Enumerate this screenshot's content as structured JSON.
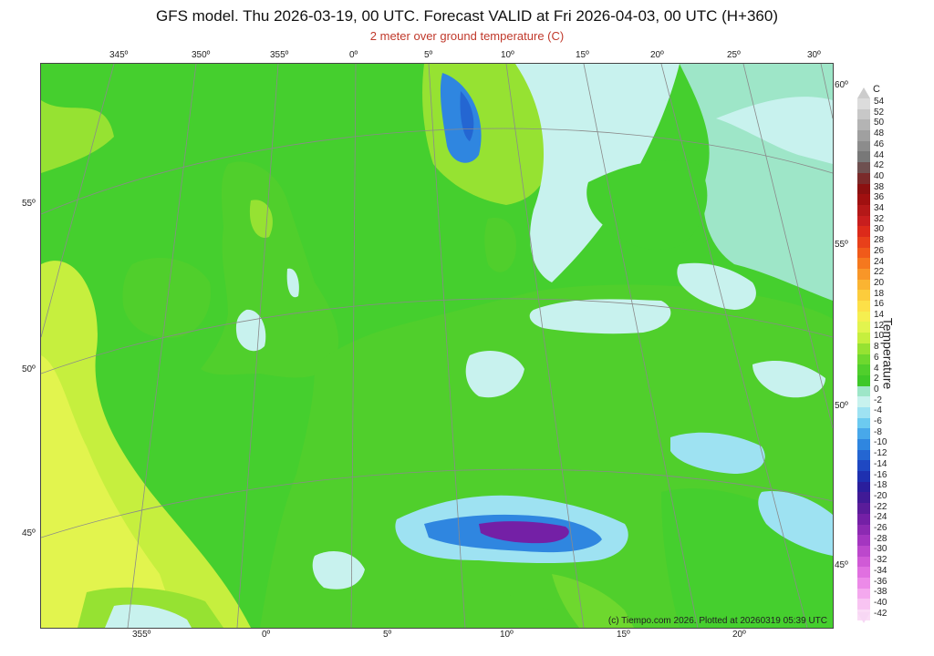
{
  "header": {
    "title": "GFS model. Thu 2026-03-19, 00 UTC. Forecast VALID at Fri 2026-04-03, 00 UTC (H+360)",
    "subtitle": "2 meter over ground temperature (C)"
  },
  "map": {
    "top_lon_ticks": [
      "345º",
      "350º",
      "355º",
      "0º",
      "5º",
      "10º",
      "15º",
      "20º",
      "25º",
      "30º"
    ],
    "bottom_lon_ticks": [
      "355º",
      "0º",
      "5º",
      "10º",
      "15º",
      "20º"
    ],
    "left_lat_ticks": [
      "55º",
      "50º",
      "45º"
    ],
    "right_lat_ticks": [
      "60º",
      "55º",
      "50º",
      "45º"
    ],
    "credit": "(c) Tiempo.com 2026. Plotted at 20260319 05:39 UTC"
  },
  "legend": {
    "unit": "C",
    "title": "Temperature",
    "labels": [
      "54",
      "52",
      "50",
      "48",
      "46",
      "44",
      "42",
      "40",
      "38",
      "36",
      "34",
      "32",
      "30",
      "28",
      "26",
      "24",
      "22",
      "20",
      "18",
      "16",
      "14",
      "12",
      "10",
      "8",
      "6",
      "4",
      "2",
      "0",
      "-2",
      "-4",
      "-6",
      "-8",
      "-10",
      "-12",
      "-14",
      "-16",
      "-18",
      "-20",
      "-22",
      "-24",
      "-26",
      "-28",
      "-30",
      "-32",
      "-34",
      "-36",
      "-38",
      "-40",
      "-42"
    ],
    "colors": [
      "#dcdcdc",
      "#c8c8c8",
      "#b4b4b4",
      "#a0a0a0",
      "#8c8c8c",
      "#787878",
      "#6e5050",
      "#7a2a2a",
      "#8b1010",
      "#a01010",
      "#b41818",
      "#c81e1e",
      "#dc2a1a",
      "#e8401a",
      "#f05a1a",
      "#f5781e",
      "#f89628",
      "#fab432",
      "#fccc3c",
      "#fde048",
      "#f5ef50",
      "#e2f44e",
      "#c6ef3e",
      "#96e232",
      "#6ed82e",
      "#50cf2c",
      "#3ec828",
      "#9ee6c8",
      "#c8f2ee",
      "#9ee2f2",
      "#6ccaf0",
      "#48a8ea",
      "#2f86e0",
      "#2466d2",
      "#1f48c2",
      "#1e30b0",
      "#2a1e9c",
      "#401a96",
      "#5a1c9a",
      "#7420a6",
      "#8c2ab2",
      "#a436c0",
      "#bc48cc",
      "#d05ad6",
      "#e070e0",
      "#ec8ae8",
      "#f4a8ee",
      "#f8c4f2",
      "#fadcf6"
    ]
  }
}
